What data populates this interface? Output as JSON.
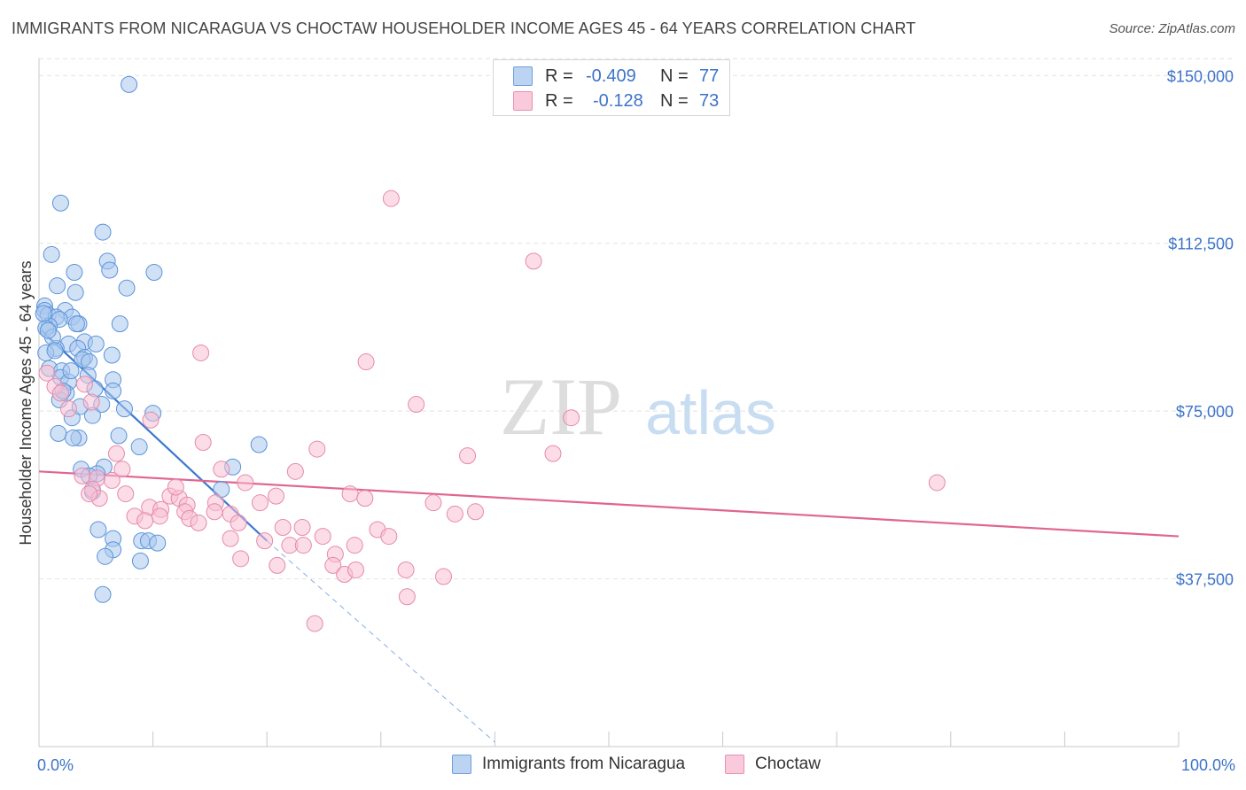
{
  "header": {
    "title": "IMMIGRANTS FROM NICARAGUA VS CHOCTAW HOUSEHOLDER INCOME AGES 45 - 64 YEARS CORRELATION CHART",
    "source": "Source: ZipAtlas.com"
  },
  "legend_top": {
    "rows": [
      {
        "r_label": "R =",
        "r_value": "-0.409",
        "n_label": "N =",
        "n_value": "77"
      },
      {
        "r_label": "R =",
        "r_value": "-0.128",
        "n_label": "N =",
        "n_value": "73"
      }
    ]
  },
  "legend_bottom": {
    "items": [
      "Immigrants from Nicaragua",
      "Choctaw"
    ]
  },
  "watermark": {
    "zip": "ZIP",
    "atlas": "atlas"
  },
  "colors": {
    "blue_fill": "#aac8ee",
    "blue_stroke": "#5b93d9",
    "blue_line": "#3a78d0",
    "pink_fill": "#f7bfd3",
    "pink_stroke": "#e68aab",
    "pink_line": "#e06592",
    "tick_text": "#3d73c8"
  },
  "chart_data": {
    "type": "scatter",
    "title": "IMMIGRANTS FROM NICARAGUA VS CHOCTAW HOUSEHOLDER INCOME AGES 45 - 64 YEARS CORRELATION CHART",
    "xlabel": "",
    "ylabel": "Householder Income Ages 45 - 64 years",
    "xlim": [
      0,
      100
    ],
    "ylim": [
      0,
      155000
    ],
    "x_tick_labels": [
      "0.0%",
      "100.0%"
    ],
    "y_ticks": [
      37500,
      75000,
      112500,
      150000
    ],
    "y_tick_labels": [
      "$37,500",
      "$75,000",
      "$112,500",
      "$150,000"
    ],
    "grid": true,
    "legend_position": "top-center",
    "series": [
      {
        "name": "Immigrants from Nicaragua",
        "color": "#5b93d9",
        "r": -0.409,
        "n": 77,
        "trend": {
          "x": [
            0.2,
            20.0
          ],
          "y": [
            93000,
            46000
          ],
          "dashed_extension": {
            "x": [
              20.0,
              40.0
            ],
            "y": [
              46000,
              1000
            ]
          }
        },
        "points": [
          [
            7.9,
            148000
          ],
          [
            1.9,
            121500
          ],
          [
            5.6,
            115000
          ],
          [
            1.1,
            110000
          ],
          [
            6.0,
            108500
          ],
          [
            6.2,
            106500
          ],
          [
            3.1,
            106000
          ],
          [
            10.1,
            106000
          ],
          [
            1.6,
            103000
          ],
          [
            7.7,
            102500
          ],
          [
            3.2,
            101500
          ],
          [
            0.5,
            98500
          ],
          [
            0.5,
            97500
          ],
          [
            2.3,
            97500
          ],
          [
            0.8,
            96500
          ],
          [
            1.5,
            96000
          ],
          [
            2.9,
            96000
          ],
          [
            1.8,
            95500
          ],
          [
            3.5,
            94500
          ],
          [
            0.9,
            94000
          ],
          [
            7.1,
            94500
          ],
          [
            0.6,
            93500
          ],
          [
            4.0,
            90500
          ],
          [
            2.6,
            90000
          ],
          [
            1.5,
            89000
          ],
          [
            3.4,
            89000
          ],
          [
            0.6,
            88000
          ],
          [
            6.4,
            87500
          ],
          [
            4.0,
            87000
          ],
          [
            3.8,
            86500
          ],
          [
            4.4,
            86000
          ],
          [
            0.9,
            84500
          ],
          [
            2.0,
            84000
          ],
          [
            4.3,
            83000
          ],
          [
            1.9,
            82500
          ],
          [
            6.5,
            82000
          ],
          [
            2.6,
            81500
          ],
          [
            6.5,
            79500
          ],
          [
            2.4,
            79000
          ],
          [
            1.8,
            77500
          ],
          [
            5.5,
            76500
          ],
          [
            7.5,
            75500
          ],
          [
            4.7,
            74000
          ],
          [
            10.0,
            74500
          ],
          [
            2.9,
            73500
          ],
          [
            1.7,
            70000
          ],
          [
            7.0,
            69500
          ],
          [
            3.5,
            69000
          ],
          [
            3.0,
            69000
          ],
          [
            8.8,
            67000
          ],
          [
            19.3,
            67500
          ],
          [
            17.0,
            62500
          ],
          [
            3.7,
            62000
          ],
          [
            5.7,
            62500
          ],
          [
            5.1,
            61000
          ],
          [
            4.4,
            60500
          ],
          [
            4.7,
            57000
          ],
          [
            16.0,
            57500
          ],
          [
            5.2,
            48500
          ],
          [
            6.5,
            46500
          ],
          [
            9.0,
            46000
          ],
          [
            9.6,
            46000
          ],
          [
            10.4,
            45500
          ],
          [
            6.5,
            44000
          ],
          [
            5.8,
            42500
          ],
          [
            8.9,
            41500
          ],
          [
            5.6,
            34000
          ],
          [
            3.3,
            94500
          ],
          [
            1.2,
            91500
          ],
          [
            2.8,
            84000
          ],
          [
            4.9,
            80000
          ],
          [
            0.8,
            93000
          ],
          [
            1.4,
            88500
          ],
          [
            3.6,
            76000
          ],
          [
            2.1,
            79500
          ],
          [
            0.4,
            96800
          ],
          [
            5.0,
            90000
          ]
        ]
      },
      {
        "name": "Choctaw",
        "color": "#e68aab",
        "r": -0.128,
        "n": 73,
        "trend": {
          "x": [
            0.0,
            100.0
          ],
          "y": [
            61500,
            47000
          ]
        },
        "points": [
          [
            30.9,
            122500
          ],
          [
            43.4,
            108500
          ],
          [
            28.7,
            86000
          ],
          [
            14.2,
            88000
          ],
          [
            0.7,
            83500
          ],
          [
            4.0,
            81000
          ],
          [
            1.4,
            80500
          ],
          [
            1.9,
            79000
          ],
          [
            4.6,
            77000
          ],
          [
            2.6,
            75500
          ],
          [
            33.1,
            76500
          ],
          [
            46.7,
            73500
          ],
          [
            9.8,
            73000
          ],
          [
            14.4,
            68000
          ],
          [
            24.4,
            66500
          ],
          [
            37.6,
            65000
          ],
          [
            45.1,
            65500
          ],
          [
            6.8,
            65500
          ],
          [
            16.0,
            62000
          ],
          [
            7.3,
            62000
          ],
          [
            22.5,
            61500
          ],
          [
            78.8,
            59000
          ],
          [
            18.1,
            59000
          ],
          [
            3.8,
            60500
          ],
          [
            5.1,
            60000
          ],
          [
            6.4,
            59500
          ],
          [
            4.7,
            57500
          ],
          [
            7.6,
            56500
          ],
          [
            20.8,
            56000
          ],
          [
            27.3,
            56500
          ],
          [
            28.6,
            55500
          ],
          [
            5.3,
            55500
          ],
          [
            11.5,
            56000
          ],
          [
            12.3,
            55500
          ],
          [
            13.0,
            54000
          ],
          [
            15.5,
            54500
          ],
          [
            19.4,
            54500
          ],
          [
            9.7,
            53500
          ],
          [
            10.7,
            53000
          ],
          [
            12.8,
            52500
          ],
          [
            15.4,
            52500
          ],
          [
            16.8,
            52000
          ],
          [
            34.6,
            54500
          ],
          [
            36.5,
            52000
          ],
          [
            38.3,
            52500
          ],
          [
            8.4,
            51500
          ],
          [
            10.6,
            51500
          ],
          [
            13.2,
            51000
          ],
          [
            17.5,
            50000
          ],
          [
            14.0,
            50000
          ],
          [
            9.3,
            50500
          ],
          [
            21.4,
            49000
          ],
          [
            23.1,
            49000
          ],
          [
            24.9,
            47000
          ],
          [
            29.7,
            48500
          ],
          [
            30.7,
            47000
          ],
          [
            19.8,
            46000
          ],
          [
            16.8,
            46500
          ],
          [
            22.0,
            45000
          ],
          [
            23.2,
            45000
          ],
          [
            27.7,
            45000
          ],
          [
            26.0,
            43000
          ],
          [
            17.7,
            42000
          ],
          [
            20.9,
            40500
          ],
          [
            25.8,
            40500
          ],
          [
            26.8,
            38500
          ],
          [
            27.8,
            39500
          ],
          [
            32.2,
            39500
          ],
          [
            35.5,
            38000
          ],
          [
            32.3,
            33500
          ],
          [
            24.2,
            27500
          ],
          [
            12.0,
            58000
          ],
          [
            4.4,
            56500
          ]
        ]
      }
    ]
  }
}
